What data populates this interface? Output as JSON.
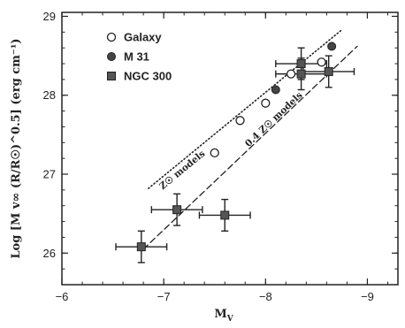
{
  "chart_data": {
    "type": "scatter",
    "xlabel": "M",
    "xlabel_sub": "V",
    "ylabel": "Log [M v∞ (R/R☉)^0.5] (erg cm⁻¹)",
    "xlim": [
      -6,
      -9.3
    ],
    "ylim": [
      25.6,
      29.05
    ],
    "x_ticks": [
      -6,
      -7,
      -8,
      -9
    ],
    "x_tick_labels": [
      "−6",
      "−7",
      "−8",
      "−9"
    ],
    "y_ticks": [
      26,
      27,
      28,
      29
    ],
    "y_tick_labels": [
      "26",
      "27",
      "28",
      "29"
    ],
    "legend_position": "top-left",
    "series": [
      {
        "name": "Galaxy",
        "marker": "open-circle",
        "points": [
          {
            "x": -7.5,
            "y": 27.27
          },
          {
            "x": -7.75,
            "y": 27.68
          },
          {
            "x": -8.0,
            "y": 27.9
          },
          {
            "x": -8.25,
            "y": 28.27
          },
          {
            "x": -8.55,
            "y": 28.42
          }
        ]
      },
      {
        "name": "M 31",
        "marker": "filled-circle",
        "points": [
          {
            "x": -8.1,
            "y": 28.07
          },
          {
            "x": -8.65,
            "y": 28.62
          }
        ]
      },
      {
        "name": "NGC 300",
        "marker": "filled-square",
        "points": [
          {
            "x": -6.78,
            "y": 26.08,
            "xerr": 0.25,
            "yerr": 0.2
          },
          {
            "x": -7.13,
            "y": 26.55,
            "xerr": 0.25,
            "yerr": 0.2
          },
          {
            "x": -7.6,
            "y": 26.48,
            "xerr": 0.25,
            "yerr": 0.2
          },
          {
            "x": -8.35,
            "y": 28.4,
            "xerr": 0.25,
            "yerr": 0.2
          },
          {
            "x": -8.35,
            "y": 28.27,
            "xerr": 0.25,
            "yerr": 0.2
          },
          {
            "x": -8.62,
            "y": 28.3,
            "xerr": 0.25,
            "yerr": 0.2
          }
        ]
      }
    ],
    "lines": [
      {
        "label": "Z☉ models",
        "style": "dotted",
        "x": [
          -6.85,
          -8.75
        ],
        "y": [
          26.82,
          28.83
        ]
      },
      {
        "label": "0.4 Z☉ models",
        "style": "dashed",
        "x": [
          -6.8,
          -8.9
        ],
        "y": [
          26.05,
          28.62
        ]
      }
    ]
  }
}
